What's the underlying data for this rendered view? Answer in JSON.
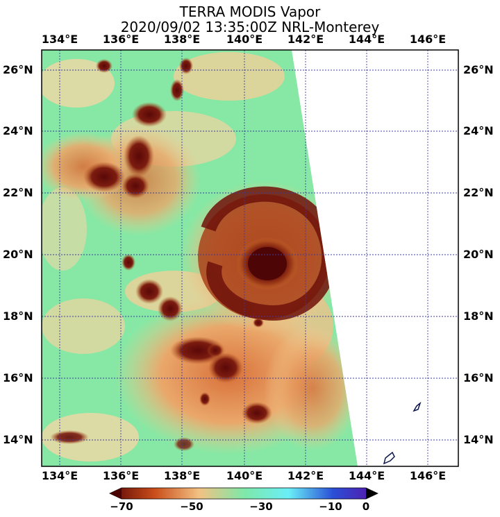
{
  "title": {
    "line1": "TERRA MODIS Vapor",
    "line2": "2020/09/02 13:35:00Z NRL-Monterey"
  },
  "longitudes": [
    "134°E",
    "136°E",
    "138°E",
    "140°E",
    "142°E",
    "144°E",
    "146°E"
  ],
  "latitudes": [
    "26°N",
    "24°N",
    "22°N",
    "20°N",
    "18°N",
    "16°N",
    "14°N"
  ],
  "colorbar": {
    "ticks": [
      "−70",
      "−50",
      "−30",
      "−10",
      "0"
    ],
    "colors": [
      "#5a0505",
      "#c94d1a",
      "#f3c183",
      "#7fe8a8",
      "#6aeff7",
      "#2a4fd6",
      "#5a12a6"
    ]
  },
  "palette": {
    "deep_cloud": "#5c0a0a",
    "cloud": "#8e2a12",
    "mid": "#d97a3c",
    "warm": "#f3c98f",
    "moist": "#86e8a4",
    "grid": "#3a3aa0",
    "coast": "#0a1550"
  }
}
